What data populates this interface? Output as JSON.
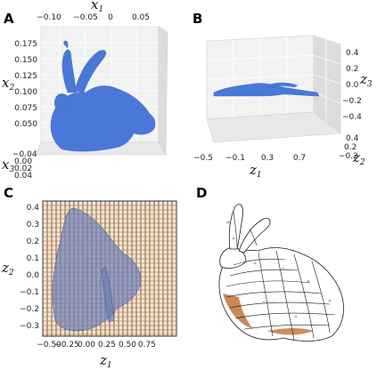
{
  "panels": {
    "A": {
      "letter": "A",
      "x_label": "x",
      "x_sub": "1",
      "y_label": "x",
      "y_sub": "2",
      "z_label": "x",
      "z_sub": "3",
      "x_ticks": [
        "−0.10",
        "−0.05",
        "0",
        "0.05"
      ],
      "y_ticks": [
        "0.175",
        "0.150",
        "0.125",
        "0.100",
        "0.075",
        "0.050"
      ],
      "z_ticks": [
        "−0.04",
        "0.00",
        "0.02",
        "0.04"
      ],
      "point_color": "#4a78d8"
    },
    "B": {
      "letter": "B",
      "x_label": "z",
      "x_sub": "1",
      "y_label": "z",
      "y_sub": "2",
      "z_label": "z",
      "z_sub": "3",
      "x_ticks": [
        "−0.5",
        "−0.1",
        "0.3",
        "0.7"
      ],
      "y_ticks": [
        "0.4",
        "0.2",
        "−0.2"
      ],
      "z_ticks": [
        "0.4",
        "0.2",
        "0.0",
        "−0.2",
        "−0.4"
      ],
      "point_color": "#4a78d8"
    },
    "C": {
      "letter": "C",
      "x_label": "z",
      "x_sub": "1",
      "y_label": "z",
      "y_sub": "2",
      "x_ticks": [
        "−0.50",
        "−0.25",
        "0.00",
        "0.25",
        "0.50",
        "0.75"
      ],
      "y_ticks": [
        "0.4",
        "0.3",
        "0.2",
        "0.1",
        "0.0",
        "−0.1",
        "−0.2",
        "−0.3"
      ],
      "grid_color": "#3a2a1a",
      "grid_accent": "#c8823a",
      "shape_color": "#6d7fb8"
    },
    "D": {
      "letter": "D",
      "mesh_color": "#ffffff",
      "line_color": "#1a1a1a",
      "shade_color": "#b8601e",
      "highlight_color": "#8fb8e8"
    }
  }
}
